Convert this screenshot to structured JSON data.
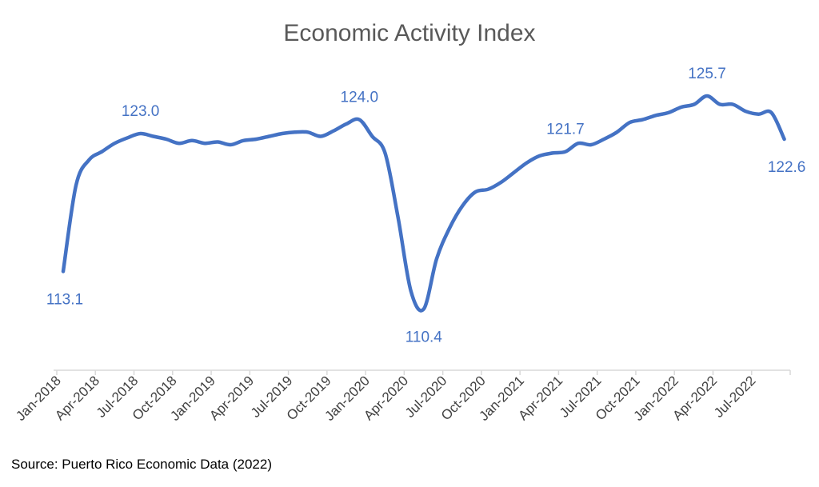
{
  "chart_data": {
    "type": "line",
    "title": "Economic Activity Index",
    "xlabel": "",
    "ylabel": "",
    "ylim": [
      106,
      128
    ],
    "grid": false,
    "legend": "none",
    "series_color": "#4472c4",
    "x_tick_labels": [
      "Jan-2018",
      "Apr-2018",
      "Jul-2018",
      "Oct-2018",
      "Jan-2019",
      "Apr-2019",
      "Jul-2019",
      "Oct-2019",
      "Jan-2020",
      "Apr-2020",
      "Jul-2020",
      "Oct-2020",
      "Jan-2021",
      "Apr-2021",
      "Jul-2021",
      "Oct-2021",
      "Jan-2022",
      "Apr-2022",
      "Jul-2022"
    ],
    "x": [
      "Jan-2018",
      "Feb-2018",
      "Mar-2018",
      "Apr-2018",
      "May-2018",
      "Jun-2018",
      "Jul-2018",
      "Aug-2018",
      "Sep-2018",
      "Oct-2018",
      "Nov-2018",
      "Dec-2018",
      "Jan-2019",
      "Feb-2019",
      "Mar-2019",
      "Apr-2019",
      "May-2019",
      "Jun-2019",
      "Jul-2019",
      "Aug-2019",
      "Sep-2019",
      "Oct-2019",
      "Nov-2019",
      "Dec-2019",
      "Jan-2020",
      "Feb-2020",
      "Mar-2020",
      "Apr-2020",
      "May-2020",
      "Jun-2020",
      "Jul-2020",
      "Aug-2020",
      "Sep-2020",
      "Oct-2020",
      "Nov-2020",
      "Dec-2020",
      "Jan-2021",
      "Feb-2021",
      "Mar-2021",
      "Apr-2021",
      "May-2021",
      "Jun-2021",
      "Jul-2021",
      "Aug-2021",
      "Sep-2021",
      "Oct-2021",
      "Nov-2021",
      "Dec-2021",
      "Jan-2022",
      "Feb-2022",
      "Mar-2022",
      "Apr-2022",
      "May-2022",
      "Jun-2022",
      "Jul-2022",
      "Aug-2022",
      "Sep-2022"
    ],
    "values": [
      113.1,
      119.3,
      121.1,
      121.7,
      122.3,
      122.7,
      123.0,
      122.8,
      122.6,
      122.3,
      122.5,
      122.3,
      122.4,
      122.2,
      122.5,
      122.6,
      122.8,
      123.0,
      123.1,
      123.1,
      122.8,
      123.2,
      123.7,
      124.0,
      122.8,
      121.6,
      117.0,
      111.7,
      110.4,
      114.0,
      116.2,
      117.8,
      118.8,
      119.0,
      119.5,
      120.2,
      120.9,
      121.4,
      121.6,
      121.7,
      122.3,
      122.2,
      122.6,
      123.1,
      123.8,
      124.0,
      124.3,
      124.5,
      124.9,
      125.1,
      125.7,
      125.1,
      125.1,
      124.6,
      124.4,
      124.5,
      122.6
    ],
    "data_labels": [
      {
        "x": "Jan-2018",
        "value": 113.1,
        "text": "113.1",
        "position": "below"
      },
      {
        "x": "Jul-2018",
        "value": 123.0,
        "text": "123.0",
        "position": "above"
      },
      {
        "x": "Dec-2019",
        "value": 124.0,
        "text": "124.0",
        "position": "above"
      },
      {
        "x": "May-2020",
        "value": 110.4,
        "text": "110.4",
        "position": "below"
      },
      {
        "x": "Apr-2021",
        "value": 121.7,
        "text": "121.7",
        "position": "above"
      },
      {
        "x": "Mar-2022",
        "value": 125.7,
        "text": "125.7",
        "position": "above"
      },
      {
        "x": "Sep-2022",
        "value": 122.6,
        "text": "122.6",
        "position": "below"
      }
    ]
  },
  "source": "Source: Puerto Rico Economic Data (2022)"
}
